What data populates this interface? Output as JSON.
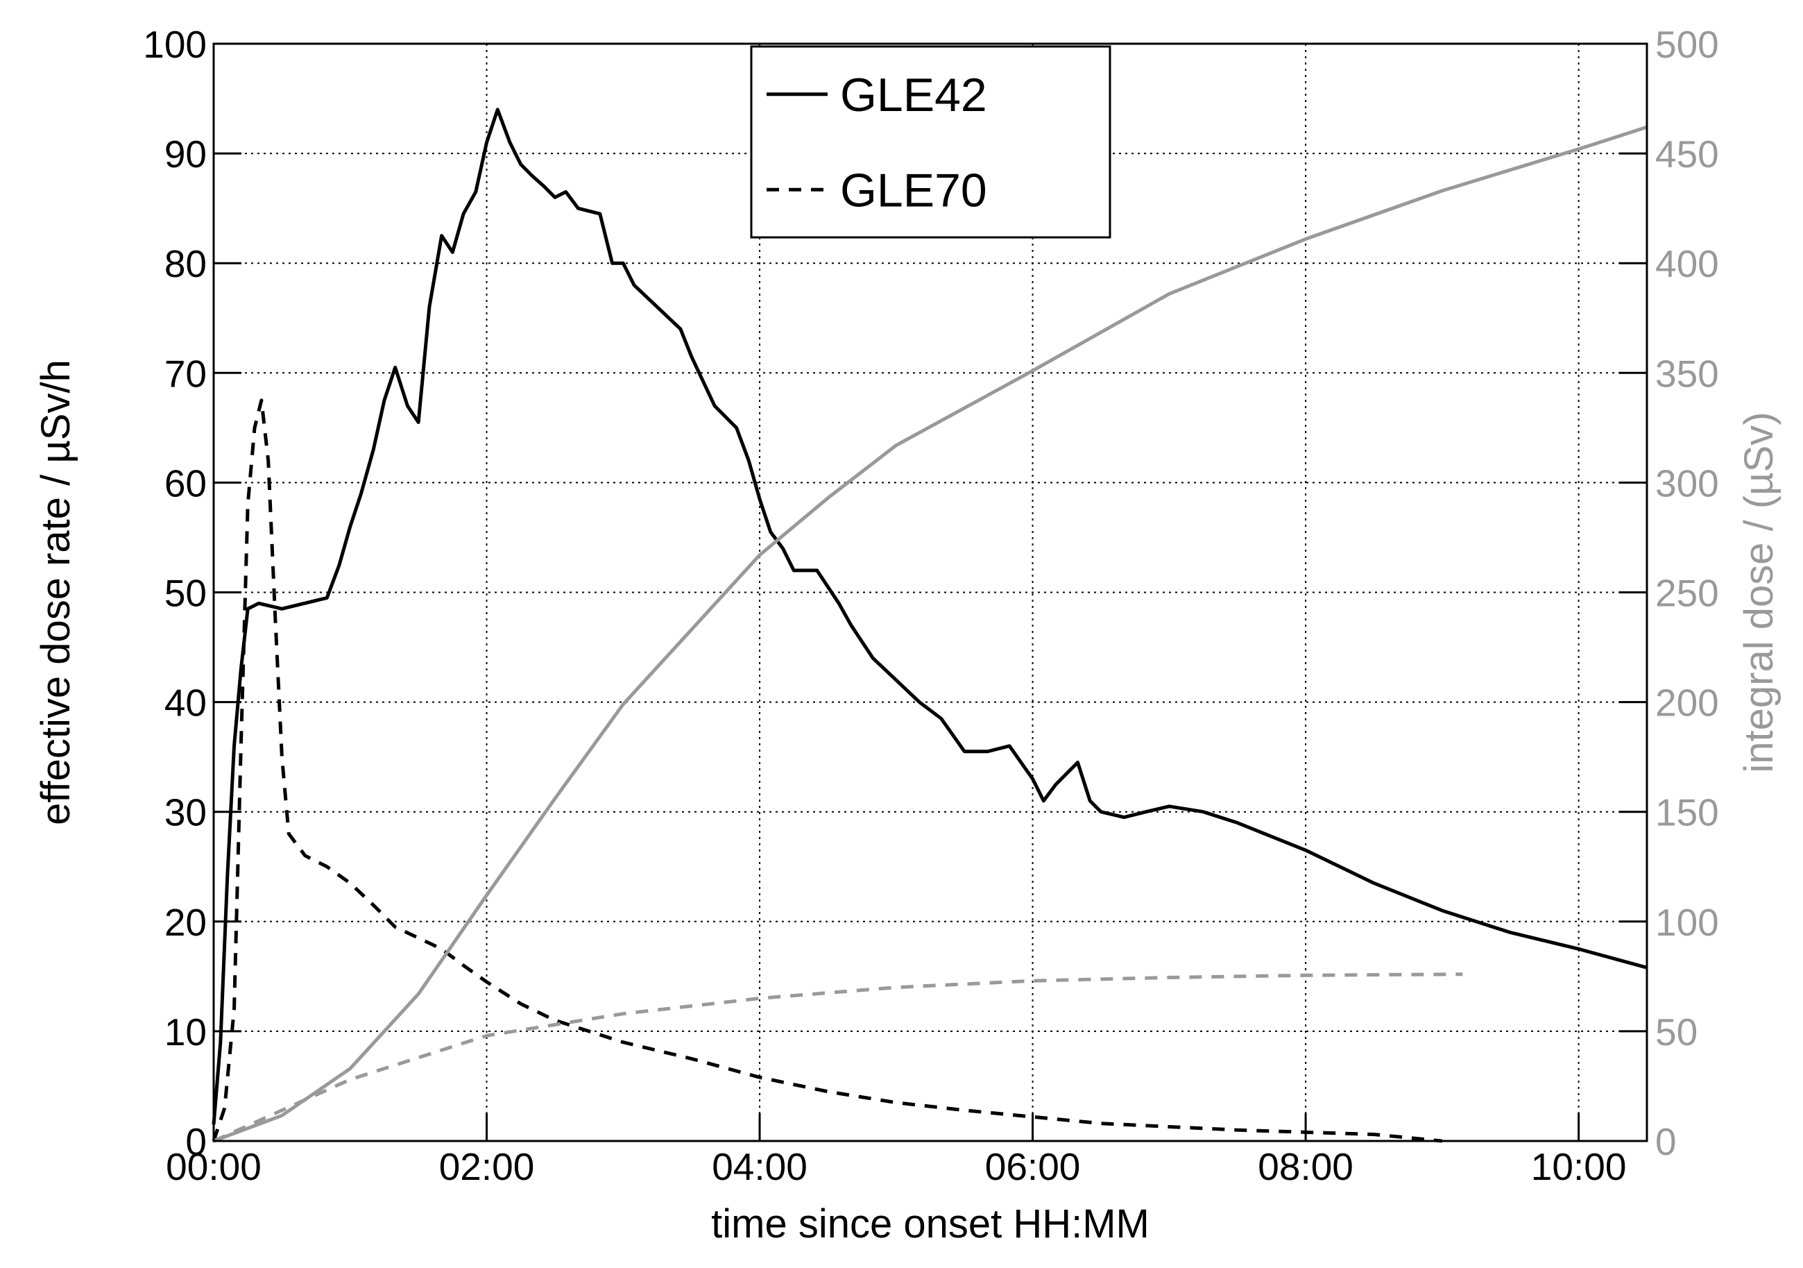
{
  "chart_data": {
    "type": "line",
    "x_label": "time since onset HH:MM",
    "y_label": "effective dose rate / µSv/h",
    "y2_label": "integral dose / (µSv)",
    "xlim": [
      0,
      10.5
    ],
    "xticks": [
      {
        "value": 0,
        "label": "00:00"
      },
      {
        "value": 2,
        "label": "02:00"
      },
      {
        "value": 4,
        "label": "04:00"
      },
      {
        "value": 6,
        "label": "06:00"
      },
      {
        "value": 8,
        "label": "08:00"
      },
      {
        "value": 10,
        "label": "10:00"
      }
    ],
    "ylim": [
      0,
      100
    ],
    "yticks": [
      0,
      10,
      20,
      30,
      40,
      50,
      60,
      70,
      80,
      90,
      100
    ],
    "y2lim": [
      0,
      500
    ],
    "y2ticks": [
      0,
      50,
      100,
      150,
      200,
      250,
      300,
      350,
      400,
      450,
      500
    ],
    "grid": true,
    "legend": "top",
    "y2_color": "#999999",
    "series": [
      {
        "name": "GLE42",
        "color": "#000000",
        "linestyle": "solid",
        "x": [
          0,
          0.05,
          0.1,
          0.15,
          0.2,
          0.25,
          0.33,
          0.5,
          0.83,
          0.92,
          1.0,
          1.08,
          1.17,
          1.25,
          1.33,
          1.42,
          1.5,
          1.58,
          1.67,
          1.75,
          1.83,
          1.92,
          2.0,
          2.08,
          2.17,
          2.25,
          2.33,
          2.42,
          2.5,
          2.58,
          2.67,
          2.83,
          2.92,
          3.0,
          3.08,
          3.25,
          3.42,
          3.5,
          3.67,
          3.83,
          3.92,
          4.0,
          4.08,
          4.17,
          4.25,
          4.42,
          4.58,
          4.67,
          4.83,
          5.0,
          5.17,
          5.33,
          5.5,
          5.67,
          5.83,
          6.0,
          6.08,
          6.17,
          6.33,
          6.42,
          6.5,
          6.67,
          6.83,
          7.0,
          7.25,
          7.5,
          8.0,
          8.5,
          9.0,
          9.5,
          10.0,
          10.5
        ],
        "values": [
          1.5,
          9,
          24,
          36,
          43,
          48.5,
          49,
          48.5,
          49.5,
          52.5,
          56,
          59,
          63,
          67.5,
          70.5,
          67,
          65.5,
          76,
          82.5,
          81,
          84.5,
          86.5,
          91,
          94,
          91,
          89,
          88,
          87,
          86,
          86.5,
          85,
          84.5,
          80,
          80,
          78,
          76,
          74,
          71.5,
          67,
          65,
          62,
          58.5,
          55.5,
          54,
          52,
          52,
          49,
          47,
          44,
          42,
          40,
          38.5,
          35.5,
          35.5,
          36,
          33,
          31,
          32.5,
          34.5,
          31,
          30,
          29.5,
          30,
          30.5,
          30,
          29,
          26.5,
          23.5,
          21,
          19,
          17.5,
          15.8
        ]
      },
      {
        "name": "GLE70",
        "color": "#000000",
        "linestyle": "dashed",
        "x": [
          0,
          0.08,
          0.15,
          0.2,
          0.25,
          0.3,
          0.35,
          0.4,
          0.45,
          0.5,
          0.55,
          0.67,
          0.83,
          1.0,
          1.17,
          1.33,
          1.5,
          1.67,
          1.83,
          2.0,
          2.25,
          2.5,
          2.75,
          3.0,
          3.5,
          4.0,
          4.5,
          5.0,
          5.5,
          6.0,
          6.5,
          7.0,
          7.5,
          8.0,
          8.5,
          9.0
        ],
        "values": [
          0,
          3,
          12,
          36,
          58,
          65,
          67.5,
          62,
          48,
          35,
          28,
          26,
          25,
          23.5,
          21.5,
          19.5,
          18.5,
          17.5,
          16,
          14.5,
          12.5,
          11,
          10,
          9,
          7.5,
          5.8,
          4.5,
          3.5,
          2.8,
          2.2,
          1.6,
          1.3,
          1.0,
          0.8,
          0.6,
          0
        ]
      },
      {
        "color": "#999999",
        "linestyle": "solid",
        "axis": "y2",
        "x": [
          0,
          0.5,
          1.0,
          1.5,
          2.0,
          2.5,
          3.0,
          3.5,
          4.0,
          4.5,
          5.0,
          6.0,
          7.0,
          8.0,
          9.0,
          10.0,
          10.5
        ],
        "values": [
          0,
          11.6,
          33,
          67,
          112,
          156,
          199,
          233,
          267,
          293,
          317,
          351,
          386,
          411,
          433,
          452,
          462
        ]
      },
      {
        "color": "#999999",
        "linestyle": "dashed",
        "axis": "y2",
        "x": [
          0,
          0.5,
          1.0,
          1.5,
          2.0,
          3.0,
          4.0,
          5.0,
          6.0,
          7.0,
          8.0,
          9.15
        ],
        "values": [
          0,
          14,
          28,
          38,
          48,
          58,
          65,
          70,
          73,
          74.5,
          75.5,
          76
        ]
      }
    ]
  }
}
